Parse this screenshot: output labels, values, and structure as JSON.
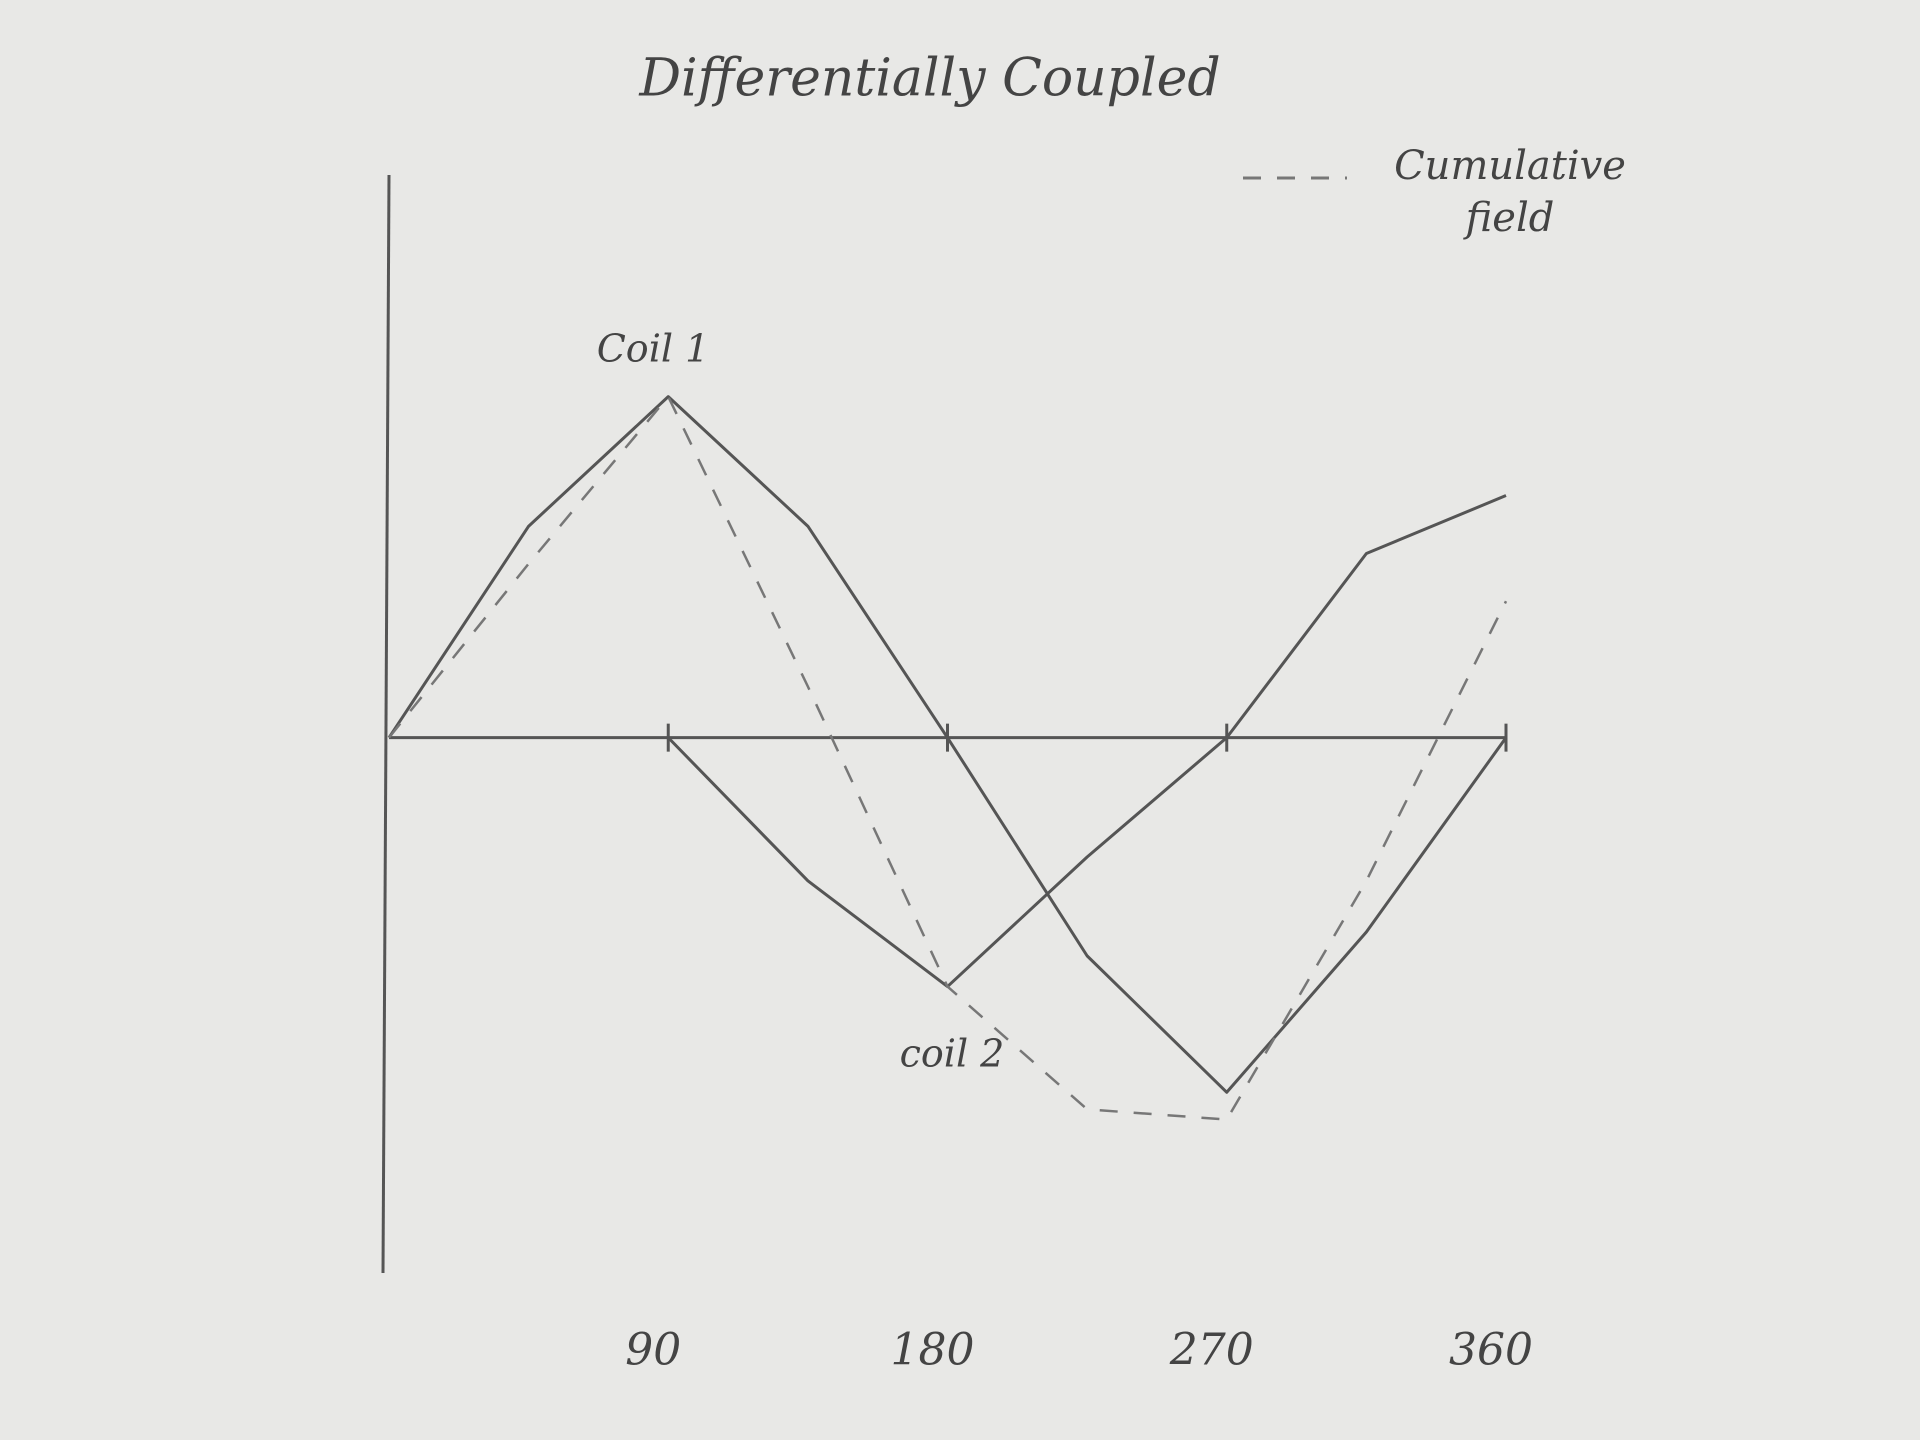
{
  "chart_data": {
    "type": "line",
    "title": "Differentially Coupled",
    "x": [
      0,
      45,
      90,
      135,
      180,
      225,
      270,
      315,
      360
    ],
    "series": [
      {
        "name": "Coil 1",
        "color": "#555555",
        "dashed": false,
        "values": [
          0,
          0.62,
          1,
          0.62,
          0,
          -0.64,
          -1.04,
          -0.57,
          0
        ]
      },
      {
        "name": "coil 2",
        "color": "#555555",
        "dashed": false,
        "values": [
          null,
          null,
          0,
          -0.42,
          -0.73,
          -0.35,
          0,
          0.54,
          0.71
        ]
      },
      {
        "name": "Cumulative field",
        "color": "#777777",
        "dashed": true,
        "values": [
          0,
          0.51,
          1,
          0.15,
          -0.73,
          -1.09,
          -1.12,
          -0.42,
          0.4
        ]
      }
    ],
    "xlim": [
      0,
      360
    ],
    "xticks": [
      90,
      180,
      270,
      360
    ],
    "ylim": [
      -1.57,
      1.65
    ],
    "grid": false
  }
}
